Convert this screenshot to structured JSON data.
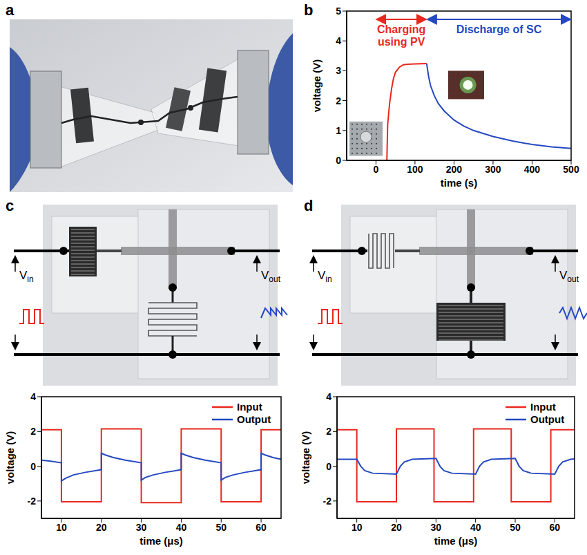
{
  "panel_labels": [
    "a",
    "b",
    "c",
    "d"
  ],
  "circuit_labels": {
    "input": {
      "text": "V",
      "subscript": "in"
    },
    "output": {
      "text": "V",
      "subscript": "out"
    }
  },
  "chart_data": [
    {
      "panel": "b",
      "type": "line",
      "xlabel": "time (s)",
      "ylabel": "voltage (V)",
      "xlim": [
        -75,
        500
      ],
      "xticks": [
        0,
        100,
        200,
        300,
        400,
        500
      ],
      "ylim": [
        0,
        5
      ],
      "yticks": [
        0,
        1,
        2,
        3,
        4,
        5
      ],
      "annotations": [
        "Charging using PV",
        "Discharge of SC"
      ],
      "series": [
        {
          "color": "#e8281e",
          "x": [
            0,
            28,
            30,
            35,
            40,
            45,
            50,
            60,
            70,
            80,
            100,
            130
          ],
          "values": [
            0,
            0,
            1.2,
            1.9,
            2.4,
            2.75,
            2.95,
            3.12,
            3.2,
            3.22,
            3.23,
            3.24
          ]
        },
        {
          "color": "#2448c0",
          "x": [
            130,
            135,
            140,
            150,
            160,
            175,
            200,
            225,
            250,
            300,
            350,
            400,
            450,
            500
          ],
          "values": [
            3.24,
            2.8,
            2.5,
            2.15,
            1.9,
            1.65,
            1.35,
            1.15,
            1.0,
            0.8,
            0.65,
            0.53,
            0.45,
            0.4
          ]
        }
      ]
    },
    {
      "panel": "c",
      "type": "line",
      "xlabel": "time (μs)",
      "ylabel": "voltage (V)",
      "xlim": [
        5,
        65
      ],
      "xticks": [
        10,
        20,
        30,
        40,
        50,
        60
      ],
      "ylim": [
        -3,
        4
      ],
      "yticks": [
        -2,
        0,
        2,
        4
      ],
      "legend": "upper right",
      "series": [
        {
          "name": "Input",
          "color": "#e8281e",
          "x": [
            5,
            10,
            10,
            20,
            20,
            30,
            30,
            40,
            40,
            50,
            50,
            60,
            60,
            65
          ],
          "values": [
            2.1,
            2.1,
            -2.05,
            -2.05,
            2.15,
            2.15,
            -2.1,
            -2.1,
            2.15,
            2.15,
            -2.05,
            -2.05,
            2.1,
            2.1
          ]
        },
        {
          "name": "Output",
          "color": "#2448c0",
          "x": [
            5,
            7,
            10,
            10,
            11,
            13,
            16,
            20,
            20,
            21,
            23,
            26,
            30,
            30,
            31,
            33,
            36,
            40,
            40,
            41,
            43,
            46,
            50,
            50,
            51,
            53,
            56,
            60,
            60,
            61,
            63,
            65
          ],
          "values": [
            0.35,
            0.3,
            0.2,
            -0.85,
            -0.7,
            -0.5,
            -0.35,
            -0.2,
            0.75,
            0.65,
            0.5,
            0.35,
            0.2,
            -0.8,
            -0.65,
            -0.5,
            -0.35,
            -0.2,
            0.75,
            0.65,
            0.5,
            0.35,
            0.2,
            -0.8,
            -0.65,
            -0.5,
            -0.35,
            -0.2,
            0.75,
            0.65,
            0.5,
            0.4
          ]
        }
      ]
    },
    {
      "panel": "d",
      "type": "line",
      "xlabel": "time (μs)",
      "ylabel": "voltage (V)",
      "xlim": [
        5,
        65
      ],
      "xticks": [
        10,
        20,
        30,
        40,
        50,
        60
      ],
      "ylim": [
        -3,
        4
      ],
      "yticks": [
        -2,
        0,
        2,
        4
      ],
      "legend": "upper right",
      "series": [
        {
          "name": "Input",
          "color": "#e8281e",
          "x": [
            5,
            10,
            10,
            20,
            20,
            29.5,
            29.5,
            39.5,
            39.5,
            49,
            49,
            59,
            59,
            65
          ],
          "values": [
            2.1,
            2.1,
            -2.05,
            -2.05,
            2.15,
            2.15,
            -2.05,
            -2.05,
            2.15,
            2.15,
            -2.05,
            -2.05,
            2.1,
            2.1
          ]
        },
        {
          "name": "Output",
          "color": "#2448c0",
          "x": [
            5,
            10,
            11,
            12,
            14,
            20,
            21,
            22,
            24,
            30,
            31,
            32,
            34,
            40,
            41,
            42,
            44,
            50,
            51,
            52,
            54,
            60,
            61,
            62,
            64,
            65
          ],
          "values": [
            0.4,
            0.4,
            0,
            -0.25,
            -0.4,
            -0.45,
            0,
            0.25,
            0.4,
            0.45,
            0,
            -0.25,
            -0.4,
            -0.45,
            0,
            0.25,
            0.4,
            0.45,
            0,
            -0.25,
            -0.4,
            -0.45,
            0,
            0.25,
            0.4,
            0.42
          ]
        }
      ]
    }
  ]
}
